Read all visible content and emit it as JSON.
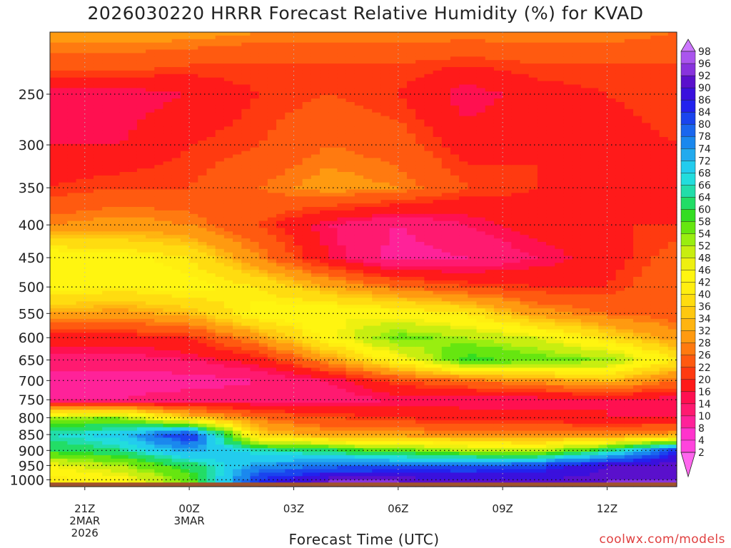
{
  "title": "2026030220 HRRR Forecast Relative Humidity (%) for KVAD",
  "xlabel": "Forecast Time (UTC)",
  "credit": "coolwx.com/models",
  "chart_data": {
    "type": "heatmap",
    "title": "2026030220 HRRR Forecast Relative Humidity (%) for KVAD",
    "xlabel": "Forecast Time (UTC)",
    "ylabel": "",
    "x_ticks": [
      {
        "hours": 1,
        "lines": [
          "21Z",
          "2MAR",
          "2026"
        ]
      },
      {
        "hours": 4,
        "lines": [
          "00Z",
          "3MAR"
        ]
      },
      {
        "hours": 7,
        "lines": [
          "03Z"
        ]
      },
      {
        "hours": 10,
        "lines": [
          "06Z"
        ]
      },
      {
        "hours": 13,
        "lines": [
          "09Z"
        ]
      },
      {
        "hours": 16,
        "lines": [
          "12Z"
        ]
      }
    ],
    "xlim_hours": [
      0,
      18
    ],
    "y_ticks": [
      250,
      300,
      350,
      400,
      450,
      500,
      550,
      600,
      650,
      700,
      750,
      800,
      850,
      900,
      950,
      1000
    ],
    "ylim": [
      200,
      1025
    ],
    "y_scale": "log",
    "grid": true,
    "colorbar_levels": [
      2,
      4,
      8,
      10,
      14,
      16,
      20,
      22,
      26,
      28,
      32,
      34,
      36,
      40,
      42,
      46,
      48,
      52,
      54,
      58,
      60,
      64,
      66,
      68,
      72,
      74,
      78,
      80,
      84,
      86,
      90,
      92,
      96,
      98
    ],
    "colorbar_colors": [
      "#ff66ee",
      "#ff44dd",
      "#ff33cc",
      "#ff2299",
      "#ff1a70",
      "#ff1050",
      "#ff1a1a",
      "#ff3a10",
      "#ff5a10",
      "#ff7a10",
      "#ff9a10",
      "#ffb410",
      "#ffc810",
      "#ffdc10",
      "#ffee10",
      "#fff510",
      "#eef010",
      "#c8ee10",
      "#99ee10",
      "#66e610",
      "#33dd22",
      "#22dd66",
      "#22ddaa",
      "#22dddd",
      "#22ccee",
      "#22aaee",
      "#1a88ee",
      "#1a66ee",
      "#1a44ee",
      "#2222ee",
      "#3a10dd",
      "#5a10cc",
      "#8833dd",
      "#aa55ee",
      "#cc77ff"
    ],
    "profiles": [
      {
        "pressures": [
          200,
          225,
          250,
          300,
          350,
          400,
          450,
          500,
          550,
          600,
          650,
          700,
          750,
          800,
          850,
          900,
          950,
          1000
        ],
        "hours": 0,
        "rh": [
          30,
          24,
          14,
          16,
          20,
          28,
          46,
          44,
          32,
          18,
          12,
          8,
          10,
          52,
          66,
          60,
          46,
          40
        ]
      },
      {
        "pressures": [
          200,
          225,
          250,
          300,
          350,
          400,
          450,
          500,
          550,
          600,
          650,
          700,
          750,
          800,
          850,
          900,
          950,
          1000
        ],
        "hours": 2,
        "rh": [
          30,
          24,
          14,
          16,
          22,
          30,
          44,
          42,
          30,
          18,
          12,
          8,
          10,
          54,
          70,
          64,
          52,
          44
        ]
      },
      {
        "pressures": [
          200,
          225,
          250,
          300,
          350,
          400,
          450,
          500,
          550,
          600,
          650,
          700,
          750,
          800,
          850,
          900,
          950,
          1000
        ],
        "hours": 4,
        "rh": [
          30,
          22,
          16,
          20,
          22,
          28,
          40,
          44,
          34,
          20,
          14,
          8,
          12,
          36,
          86,
          74,
          62,
          56
        ]
      },
      {
        "pressures": [
          200,
          225,
          250,
          300,
          350,
          400,
          450,
          500,
          550,
          600,
          650,
          700,
          750,
          800,
          850,
          900,
          950,
          1000
        ],
        "hours": 6,
        "rh": [
          28,
          22,
          20,
          22,
          26,
          22,
          28,
          40,
          44,
          30,
          18,
          10,
          12,
          26,
          36,
          66,
          74,
          84
        ]
      },
      {
        "pressures": [
          200,
          225,
          250,
          300,
          350,
          400,
          450,
          500,
          550,
          600,
          650,
          700,
          750,
          800,
          850,
          900,
          950,
          1000
        ],
        "hours": 8,
        "rh": [
          28,
          22,
          22,
          26,
          30,
          14,
          16,
          32,
          46,
          44,
          30,
          14,
          12,
          22,
          30,
          62,
          78,
          92
        ]
      },
      {
        "pressures": [
          200,
          225,
          250,
          300,
          350,
          400,
          450,
          500,
          550,
          600,
          650,
          700,
          750,
          800,
          850,
          900,
          950,
          1000
        ],
        "hours": 10,
        "rh": [
          28,
          22,
          20,
          24,
          28,
          10,
          8,
          26,
          44,
          56,
          44,
          22,
          14,
          20,
          30,
          56,
          80,
          92
        ]
      },
      {
        "pressures": [
          200,
          225,
          250,
          300,
          350,
          400,
          450,
          500,
          550,
          600,
          650,
          700,
          750,
          800,
          850,
          900,
          950,
          1000
        ],
        "hours": 12,
        "rh": [
          28,
          20,
          14,
          18,
          22,
          14,
          10,
          22,
          40,
          52,
          60,
          26,
          14,
          18,
          28,
          52,
          80,
          90
        ]
      },
      {
        "pressures": [
          200,
          225,
          250,
          300,
          350,
          400,
          450,
          500,
          550,
          600,
          650,
          700,
          750,
          800,
          850,
          900,
          950,
          1000
        ],
        "hours": 14,
        "rh": [
          28,
          22,
          18,
          20,
          20,
          18,
          14,
          20,
          30,
          48,
          56,
          30,
          14,
          18,
          28,
          50,
          82,
          90
        ]
      },
      {
        "pressures": [
          200,
          225,
          250,
          300,
          350,
          400,
          450,
          500,
          550,
          600,
          650,
          700,
          750,
          800,
          850,
          900,
          950,
          1000
        ],
        "hours": 16,
        "rh": [
          28,
          22,
          20,
          18,
          18,
          20,
          18,
          20,
          26,
          38,
          54,
          34,
          16,
          16,
          28,
          62,
          90,
          92
        ]
      },
      {
        "pressures": [
          200,
          225,
          250,
          300,
          350,
          400,
          450,
          500,
          550,
          600,
          650,
          700,
          750,
          800,
          850,
          900,
          950,
          1000
        ],
        "hours": 18,
        "rh": [
          26,
          22,
          22,
          20,
          20,
          20,
          24,
          26,
          24,
          30,
          40,
          26,
          14,
          16,
          30,
          84,
          92,
          92
        ]
      }
    ],
    "terrain_color": "#a0522d",
    "cell_hours": 0.25
  }
}
